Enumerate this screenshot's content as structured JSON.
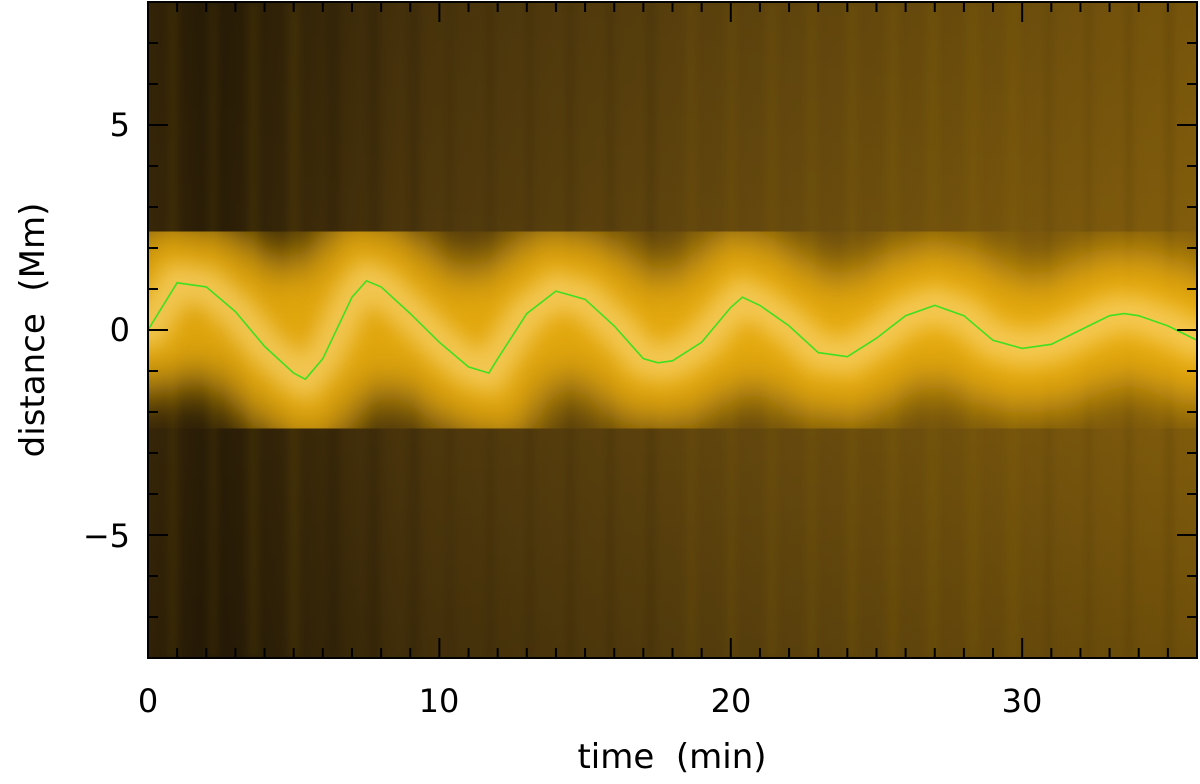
{
  "chart_data": {
    "type": "heatmap",
    "xlabel": "time  (min)",
    "ylabel": "distance  (Mm)",
    "xlim": [
      0,
      36
    ],
    "ylim": [
      -8,
      8
    ],
    "x_ticks": [
      0,
      10,
      20,
      30
    ],
    "y_ticks": [
      -5,
      0,
      5
    ],
    "x_tick_labels": [
      "0",
      "10",
      "20",
      "30"
    ],
    "y_tick_labels": [
      "−5",
      "0",
      "5"
    ],
    "x_minor_step": 1,
    "y_minor_step": 1,
    "grid": false,
    "colormap": "black-orange-yellow-white",
    "background_color": "#5a4010",
    "band_color": "#f2b30e",
    "band_core_color": "#ffe088",
    "series": [
      {
        "type": "line",
        "color": "#3ee020",
        "x": [
          0,
          1,
          2,
          3,
          4,
          5,
          5.4,
          6,
          7,
          7.5,
          8,
          9,
          10,
          11,
          11.7,
          12,
          13,
          14,
          15,
          16,
          17,
          17.5,
          18,
          19,
          20,
          20.4,
          21,
          22,
          23,
          24,
          25,
          26,
          27,
          28,
          29,
          30,
          31,
          32,
          33,
          33.5,
          34,
          35,
          36
        ],
        "y": [
          0,
          1.15,
          1.05,
          0.45,
          -0.4,
          -1.05,
          -1.2,
          -0.7,
          0.8,
          1.2,
          1.05,
          0.4,
          -0.3,
          -0.9,
          -1.05,
          -0.7,
          0.4,
          0.95,
          0.75,
          0.1,
          -0.7,
          -0.8,
          -0.75,
          -0.3,
          0.55,
          0.8,
          0.6,
          0.1,
          -0.55,
          -0.65,
          -0.2,
          0.35,
          0.6,
          0.35,
          -0.25,
          -0.45,
          -0.35,
          0.0,
          0.35,
          0.4,
          0.35,
          0.1,
          -0.25
        ]
      }
    ]
  }
}
